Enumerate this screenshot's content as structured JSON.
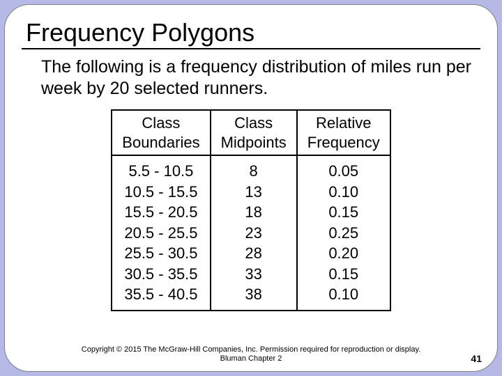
{
  "title": "Frequency Polygons",
  "description": "The following is a frequency distribution of miles run per week by 20 selected runners.",
  "table": {
    "columns": [
      "Class Boundaries",
      "Class Midpoints",
      "Relative Frequency"
    ],
    "rows": [
      [
        "5.5 - 10.5",
        "8",
        "0.05"
      ],
      [
        "10.5 - 15.5",
        "13",
        "0.10"
      ],
      [
        "15.5 - 20.5",
        "18",
        "0.15"
      ],
      [
        "20.5 - 25.5",
        "23",
        "0.25"
      ],
      [
        "25.5 - 30.5",
        "28",
        "0.20"
      ],
      [
        "30.5 - 35.5",
        "33",
        "0.15"
      ],
      [
        "35.5 - 40.5",
        "38",
        "0.10"
      ]
    ]
  },
  "copyright": "Copyright © 2015 The McGraw-Hill Companies, Inc.  Permission required for reproduction or display.",
  "chapter": "Bluman Chapter 2",
  "page_number": "41",
  "colors": {
    "background": "#b5b9e8",
    "slide_bg": "#ffffff",
    "text": "#000000",
    "border": "#000000"
  },
  "typography": {
    "title_fontsize": 36,
    "body_fontsize": 25,
    "table_fontsize": 22,
    "footer_fontsize": 11,
    "pagenum_fontsize": 14
  }
}
